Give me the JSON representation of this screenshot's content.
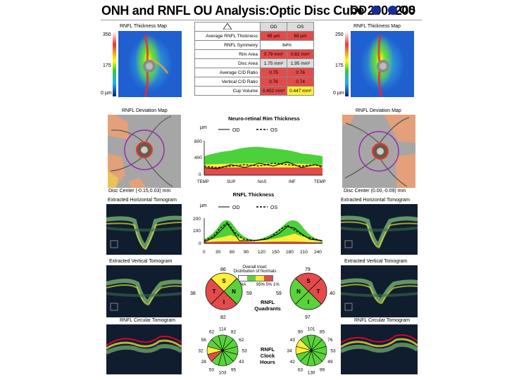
{
  "header": {
    "title": "ONH and RNFL OU Analysis:Optic Disc Cube 200x200",
    "od_label": "OD",
    "os_label": "OS",
    "eye_color": "#1a2a9a"
  },
  "thickness_map": {
    "title": "RNFL Thickness Map",
    "od_scale": [
      "350",
      "175",
      "0 µm"
    ],
    "os_scale": [
      "250",
      "175",
      "0 µm"
    ]
  },
  "params_table": {
    "warning_icon": "warning-triangle-icon",
    "headers": [
      "OD",
      "OS"
    ],
    "rows": [
      {
        "label": "Average RNFL Thickness",
        "od": "69 µm",
        "os": "69 µm",
        "od_color": "red",
        "os_color": "red",
        "merged": false
      },
      {
        "label": "RNFL Symmetry",
        "value": "84%",
        "merged": true
      },
      {
        "label": "Rim Area",
        "od": "0.79 mm²",
        "os": "0.82 mm²",
        "od_color": "red",
        "os_color": "red",
        "merged": false
      },
      {
        "label": "Disc Area",
        "od": "1.75 mm²",
        "os": "1.95 mm²",
        "od_color": "gray",
        "os_color": "gray",
        "merged": false
      },
      {
        "label": "Average C/D Ratio",
        "od": "0.75",
        "os": "0.76",
        "od_color": "red",
        "os_color": "red",
        "merged": false
      },
      {
        "label": "Vertical C/D Ratio",
        "od": "0.76",
        "os": "0.74",
        "od_color": "red",
        "os_color": "red",
        "merged": false
      },
      {
        "label": "Cup Volume",
        "od": "0.452 mm³",
        "os": "0.447 mm³",
        "od_color": "red",
        "os_color": "yellow",
        "merged": false
      }
    ]
  },
  "deviation_map": {
    "title": "RNFL Deviation Map",
    "od_center": "Disc Center (-0.15,0.03) mm",
    "os_center": "Disc Center (0.00,-0.09) mm"
  },
  "rim_chart": {
    "title": "Neuro-retinal Rim Thickness",
    "unit": "µm",
    "legend_od": "OD",
    "legend_os": "OS",
    "yticks": [
      "800",
      "400",
      "0"
    ],
    "xticks": [
      "TEMP",
      "SUP",
      "NAS",
      "INF",
      "TEMP"
    ]
  },
  "rnfl_chart": {
    "title": "RNFL Thickness",
    "unit": "µm",
    "legend_od": "OD",
    "legend_os": "OS",
    "yticks": [
      "200",
      "100",
      "0"
    ],
    "xticks": [
      "0",
      "30",
      "60",
      "90",
      "120",
      "150",
      "180",
      "210",
      "240"
    ]
  },
  "tomograms": {
    "horizontal": "Extracted Horizontal Tomogram",
    "vertical": "Extracted Vertical Tomogram",
    "circular": "RNFL Circular Tomogram"
  },
  "legend": {
    "title_line1": "Overall Inset:",
    "title_line2": "Distribution of Normals",
    "na": "NA",
    "pcts": "95% 5% 1%",
    "colors": [
      "#ffffff",
      "#5ad23c",
      "#ffef3a",
      "#e34b4b"
    ]
  },
  "quadrants": {
    "label": "RNFL\nQuadrants",
    "od": {
      "S": "86",
      "T": "38",
      "N": "59",
      "I": "82",
      "colors": {
        "S": "#ffef3a",
        "T": "#e34b4b",
        "N": "#5ad23c",
        "I": "#e34b4b"
      }
    },
    "os": {
      "S": "79",
      "T": "40",
      "N": "59",
      "I": "97",
      "colors": {
        "S": "#e34b4b",
        "T": "#5ad23c",
        "N": "#e34b4b",
        "I": "#5ad23c"
      }
    }
  },
  "clock_hours": {
    "label": "RNFL\nClock\nHours",
    "od": {
      "values": [
        "114",
        "82",
        "62",
        "53",
        "43",
        "95",
        "103",
        "50",
        "28",
        "32",
        "56",
        "62"
      ],
      "colors": [
        "#5ad23c",
        "#5ad23c",
        "#5ad23c",
        "#5ad23c",
        "#5ad23c",
        "#5ad23c",
        "#5ad23c",
        "#5ad23c",
        "#e34b4b",
        "#ffef3a",
        "#5ad23c",
        "#5ad23c"
      ]
    },
    "os": {
      "values": [
        "101",
        "90",
        "43",
        "34",
        "42",
        "63",
        "130",
        "99",
        "49",
        "53",
        "76",
        "85"
      ],
      "colors": [
        "#5ad23c",
        "#5ad23c",
        "#ffef3a",
        "#ffef3a",
        "#5ad23c",
        "#5ad23c",
        "#5ad23c",
        "#5ad23c",
        "#5ad23c",
        "#5ad23c",
        "#5ad23c",
        "#5ad23c"
      ]
    }
  }
}
